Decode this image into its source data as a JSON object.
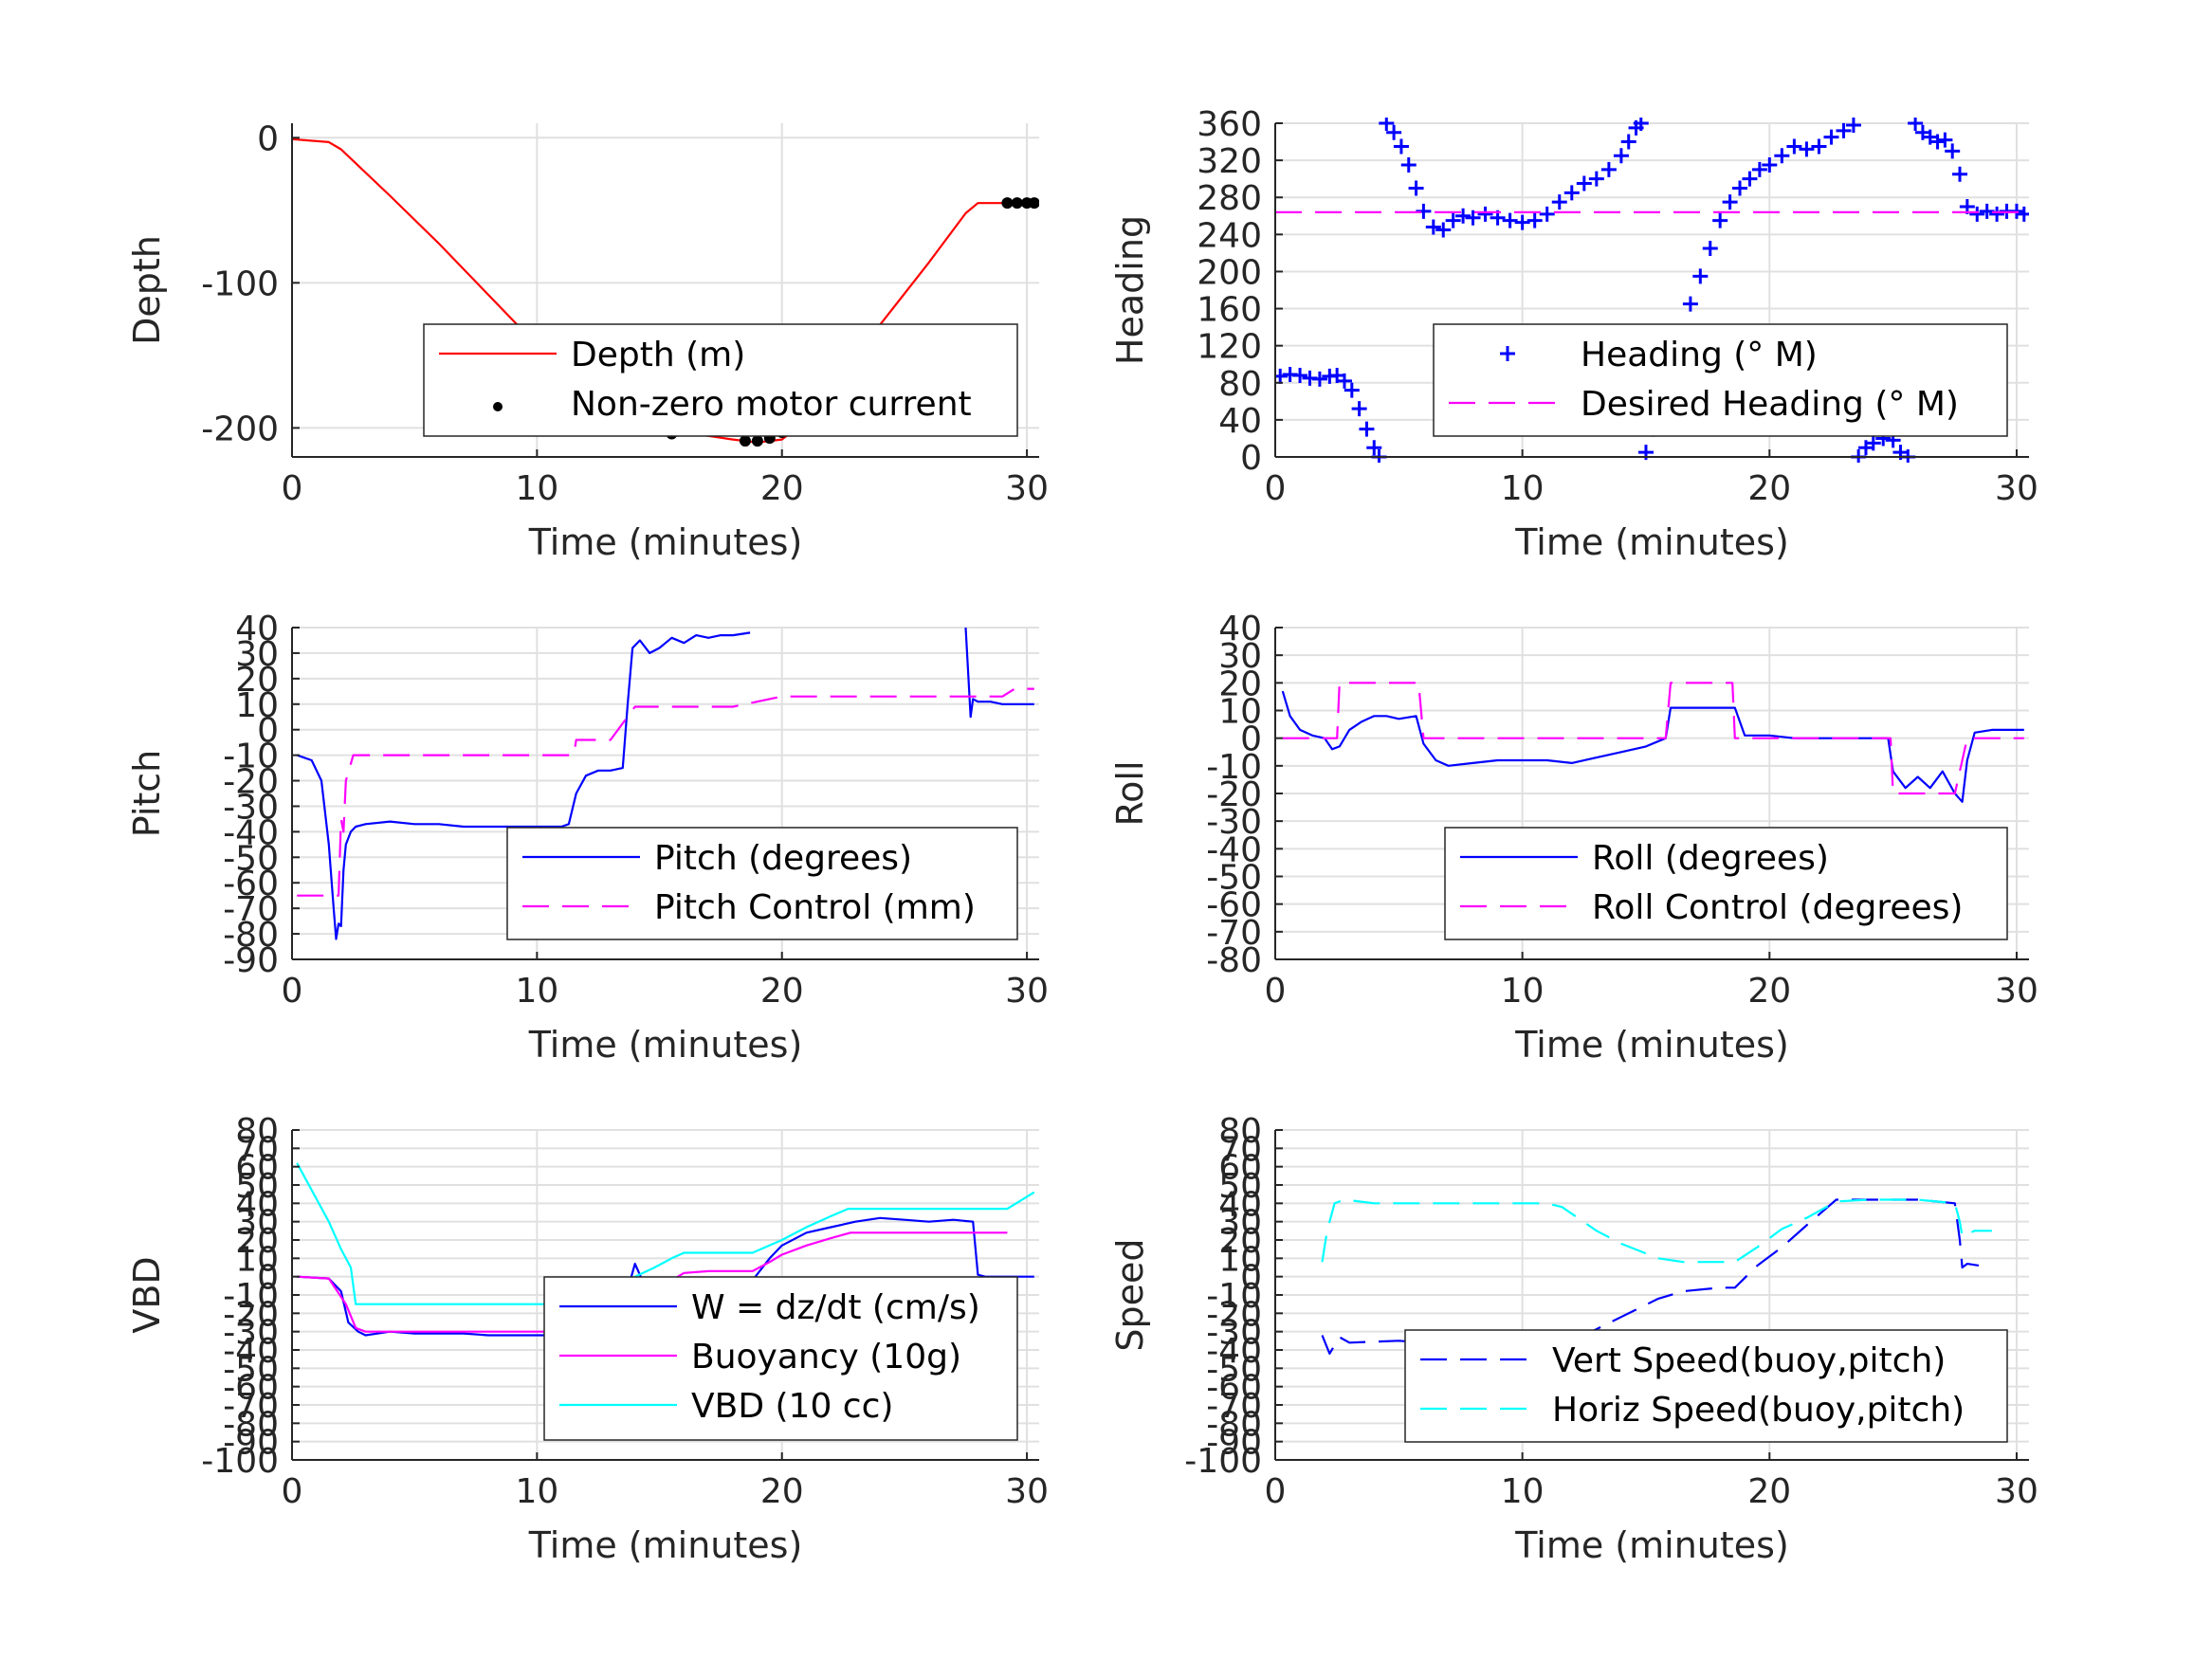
{
  "chart_data": [
    {
      "type": "line",
      "xlabel": "Time (minutes)",
      "ylabel": "Depth",
      "xlim": [
        0,
        30
      ],
      "ylim": [
        -220,
        10
      ],
      "xticks": [
        0,
        10,
        20,
        30
      ],
      "yticks": [
        0,
        -100,
        -200
      ],
      "grid": true,
      "legend_position": "bottom-right",
      "series": [
        {
          "name": "Depth (m)",
          "style": "solid",
          "color": "#ff0000",
          "x": [
            0,
            1.5,
            2,
            4,
            6,
            8,
            10,
            12,
            14,
            16,
            18,
            19,
            20,
            21,
            22,
            24,
            26,
            27.5,
            28,
            29,
            30
          ],
          "y": [
            -1,
            -3,
            -8,
            -40,
            -73,
            -108,
            -143,
            -178,
            -195,
            -203,
            -208,
            -210,
            -208,
            -195,
            -172,
            -129,
            -86,
            -52,
            -45,
            -45,
            -45
          ]
        },
        {
          "name": "Non-zero motor current",
          "style": "dots",
          "color": "#000000",
          "x": [
            11,
            11.5,
            12,
            12.5,
            13,
            13.5,
            14,
            14.5,
            15,
            15.5,
            18.5,
            19,
            19.5,
            20,
            20.5,
            21,
            21.5,
            22,
            22.5,
            22.8,
            29.2,
            29.6,
            30,
            30.3
          ],
          "y": [
            -186,
            -190,
            -193,
            -196,
            -198,
            -197,
            -198,
            -200,
            -202,
            -204,
            -209,
            -209,
            -207,
            -203,
            -197,
            -190,
            -182,
            -174,
            -165,
            -159,
            -45,
            -45,
            -45,
            -45
          ]
        }
      ]
    },
    {
      "type": "scatter",
      "xlabel": "Time (minutes)",
      "ylabel": "Heading",
      "xlim": [
        0,
        30
      ],
      "ylim": [
        0,
        360
      ],
      "xticks": [
        0,
        10,
        20,
        30
      ],
      "yticks": [
        0,
        40,
        80,
        120,
        160,
        200,
        240,
        280,
        320,
        360
      ],
      "grid": true,
      "legend_position": "bottom-right",
      "series": [
        {
          "name": "Heading (° M)",
          "style": "plus",
          "color": "#0000ff",
          "x": [
            0.2,
            0.6,
            1,
            1.4,
            1.8,
            2.2,
            2.5,
            2.8,
            3.1,
            3.4,
            3.7,
            4,
            4.2,
            4.5,
            4.8,
            5.1,
            5.4,
            5.7,
            6,
            6.4,
            6.8,
            7.2,
            7.6,
            8,
            8.5,
            9,
            9.5,
            10,
            10.5,
            11,
            11.5,
            12,
            12.5,
            13,
            13.5,
            14,
            14.3,
            14.6,
            14.8,
            15,
            15.3,
            15.6,
            16,
            16.4,
            16.8,
            17.2,
            17.6,
            18,
            18.4,
            18.8,
            19.2,
            19.6,
            20,
            20.5,
            21,
            21.5,
            22,
            22.5,
            23,
            23.4,
            23.6,
            23.9,
            24.2,
            24.6,
            25,
            25.3,
            25.6,
            25.9,
            26.2,
            26.5,
            26.8,
            27.1,
            27.4,
            27.7,
            28,
            28.4,
            28.8,
            29.2,
            29.6,
            30,
            30.3
          ],
          "y": [
            87,
            89,
            88,
            85,
            84,
            87,
            88,
            82,
            72,
            52,
            30,
            10,
            0,
            360,
            350,
            335,
            315,
            290,
            265,
            248,
            245,
            255,
            260,
            258,
            262,
            258,
            255,
            253,
            255,
            262,
            275,
            285,
            295,
            300,
            310,
            325,
            340,
            355,
            360,
            5,
            30,
            60,
            95,
            130,
            165,
            195,
            225,
            255,
            275,
            290,
            300,
            310,
            315,
            325,
            335,
            332,
            335,
            345,
            352,
            358,
            0,
            10,
            15,
            20,
            18,
            5,
            0,
            360,
            350,
            345,
            340,
            342,
            330,
            305,
            270,
            262,
            265,
            262,
            265,
            265,
            262
          ]
        },
        {
          "name": "Desired Heading (° M)",
          "style": "dashed",
          "color": "#ff00ff",
          "x": [
            0,
            30.5
          ],
          "y": [
            264,
            264
          ]
        }
      ]
    },
    {
      "type": "line",
      "xlabel": "Time (minutes)",
      "ylabel": "Pitch",
      "xlim": [
        0,
        30
      ],
      "ylim": [
        -90,
        40
      ],
      "xticks": [
        0,
        10,
        20,
        30
      ],
      "yticks": [
        40,
        30,
        20,
        10,
        0,
        -10,
        -20,
        -30,
        -40,
        -50,
        -60,
        -70,
        -80,
        -90
      ],
      "grid": true,
      "legend_position": "bottom-right",
      "series": [
        {
          "name": "Pitch (degrees)",
          "style": "solid",
          "color": "#0000ff",
          "x": [
            0.2,
            0.8,
            1.2,
            1.5,
            1.7,
            1.8,
            1.9,
            2,
            2.1,
            2.2,
            2.4,
            2.6,
            3,
            4,
            5,
            6,
            7,
            8,
            9,
            10,
            11,
            11.3,
            11.6,
            12,
            12.5,
            13,
            13.5,
            13.7,
            13.9,
            14.2,
            14.6,
            15,
            15.5,
            16,
            16.5,
            17,
            17.5,
            18,
            18.7
          ],
          "y": [
            -10,
            -12,
            -20,
            -45,
            -70,
            -82,
            -76,
            -77,
            -55,
            -45,
            -40,
            -38,
            -37,
            -36,
            -37,
            -37,
            -38,
            -38,
            -38,
            -38,
            -38,
            -37,
            -25,
            -18,
            -16,
            -16,
            -15,
            10,
            32,
            35,
            30,
            32,
            36,
            34,
            37,
            36,
            37,
            37,
            38
          ]
        },
        {
          "name": "Pitch (degrees)",
          "style": "solid",
          "color": "#0000ff",
          "unlabeled": true,
          "x": [
            27.5,
            27.7,
            27.8,
            28,
            28.5,
            29,
            30,
            30.3
          ],
          "y": [
            40,
            5,
            12,
            11,
            11,
            10,
            10,
            10
          ]
        },
        {
          "name": "Pitch Control (mm)",
          "style": "dashed",
          "color": "#ff00ff",
          "x": [
            0.2,
            1.9,
            2,
            2.1,
            2.2,
            2.5,
            5,
            8,
            11,
            11.5,
            11.6,
            12,
            13,
            14,
            15,
            18,
            20,
            25,
            28,
            29,
            29.5,
            30.3
          ],
          "y": [
            -65,
            -65,
            -35,
            -40,
            -20,
            -10,
            -10,
            -10,
            -10,
            -10,
            -4,
            -4,
            -4,
            9,
            9,
            9,
            13,
            13,
            13,
            13,
            16,
            16
          ]
        }
      ]
    },
    {
      "type": "line",
      "xlabel": "Time (minutes)",
      "ylabel": "Roll",
      "xlim": [
        0,
        30
      ],
      "ylim": [
        -80,
        40
      ],
      "xticks": [
        0,
        10,
        20,
        30
      ],
      "yticks": [
        40,
        30,
        20,
        10,
        0,
        -10,
        -20,
        -30,
        -40,
        -50,
        -60,
        -70,
        -80
      ],
      "grid": true,
      "legend_position": "bottom-right",
      "series": [
        {
          "name": "Roll (degrees)",
          "style": "solid",
          "color": "#0000ff",
          "x": [
            0.3,
            0.6,
            1,
            1.5,
            2,
            2.3,
            2.6,
            3,
            3.5,
            4,
            4.5,
            5,
            5.7,
            6,
            6.5,
            7,
            8,
            9,
            10,
            11,
            12,
            13,
            14,
            15,
            15.8,
            16,
            17,
            18,
            18.6,
            19,
            20,
            21,
            22,
            23,
            24,
            24.8,
            25,
            25.5,
            26,
            26.5,
            27,
            27.5,
            27.8,
            28,
            28.3,
            29,
            30,
            30.3
          ],
          "y": [
            17,
            8,
            3,
            1,
            0,
            -4,
            -3,
            3,
            6,
            8,
            8,
            7,
            8,
            -2,
            -8,
            -10,
            -9,
            -8,
            -8,
            -8,
            -9,
            -7,
            -5,
            -3,
            0,
            11,
            11,
            11,
            11,
            1,
            1,
            0,
            0,
            0,
            0,
            0,
            -12,
            -18,
            -14,
            -18,
            -12,
            -20,
            -23,
            -8,
            2,
            3,
            3,
            3
          ]
        },
        {
          "name": "Roll Control (degrees)",
          "style": "dashed",
          "color": "#ff00ff",
          "x": [
            0.3,
            2.5,
            2.6,
            3,
            5,
            5.8,
            6,
            8,
            10,
            12,
            14,
            15.8,
            16,
            18.5,
            18.6,
            20,
            22,
            24.9,
            25,
            26,
            27.5,
            28,
            30.3
          ],
          "y": [
            0,
            0,
            20,
            20,
            20,
            20,
            0,
            0,
            0,
            0,
            0,
            0,
            20,
            20,
            0,
            0,
            0,
            0,
            -20,
            -20,
            -20,
            0,
            0
          ]
        }
      ]
    },
    {
      "type": "line",
      "xlabel": "Time (minutes)",
      "ylabel": "VBD",
      "xlim": [
        0,
        30
      ],
      "ylim": [
        -100,
        80
      ],
      "xticks": [
        0,
        10,
        20,
        30
      ],
      "yticks": [
        80,
        70,
        60,
        50,
        40,
        30,
        20,
        10,
        0,
        -10,
        -20,
        -30,
        -40,
        -50,
        -60,
        -70,
        -80,
        -90,
        -100
      ],
      "grid": true,
      "legend_position": "bottom-right",
      "series": [
        {
          "name": "W = dz/dt (cm/s)",
          "style": "solid",
          "color": "#0000ff",
          "x": [
            0.2,
            1.5,
            2,
            2.3,
            2.7,
            3,
            4,
            5,
            6,
            7,
            8,
            9,
            10,
            11,
            11.5,
            12,
            13,
            13.6,
            14,
            14.4,
            14.8,
            15.5,
            16,
            17,
            18,
            18.8,
            19.5,
            20,
            21,
            22,
            23,
            24,
            25,
            26,
            27,
            27.8,
            28,
            28.3,
            29,
            30.3
          ],
          "y": [
            0,
            -1,
            -8,
            -25,
            -30,
            -32,
            -30,
            -31,
            -31,
            -31,
            -32,
            -32,
            -32,
            -32,
            -30,
            -25,
            -18,
            -12,
            7,
            -5,
            -8,
            -6,
            -5,
            -4,
            -3,
            -2,
            10,
            17,
            24,
            27,
            30,
            32,
            31,
            30,
            31,
            30,
            1,
            0,
            0,
            0
          ]
        },
        {
          "name": "Buoyancy (10g)",
          "style": "solid",
          "color": "#ff00ff",
          "x": [
            0.2,
            1.5,
            2.2,
            2.6,
            3,
            6,
            9,
            11,
            11.5,
            12,
            13,
            14,
            15,
            16,
            17,
            18,
            18.8,
            19.5,
            20,
            21,
            22,
            22.8,
            23,
            25,
            27,
            29.2
          ],
          "y": [
            0,
            -1,
            -15,
            -28,
            -30,
            -30,
            -30,
            -30,
            -30,
            -27,
            -20,
            -12,
            -6,
            2,
            3,
            3,
            3,
            8,
            12,
            17,
            21,
            24,
            24,
            24,
            24,
            24
          ]
        },
        {
          "name": "VBD (10 cc)",
          "style": "solid",
          "color": "#00ffff",
          "x": [
            0.2,
            1.5,
            2,
            2.4,
            2.6,
            3,
            6,
            9,
            11,
            11.5,
            12,
            13,
            14,
            14.8,
            15.5,
            16,
            18,
            18.8,
            20,
            21,
            22,
            22.7,
            24,
            26,
            28,
            29.2,
            30.3
          ],
          "y": [
            62,
            30,
            15,
            5,
            -15,
            -15,
            -15,
            -15,
            -15,
            -15,
            -12,
            -6,
            0,
            5,
            10,
            13,
            13,
            13,
            20,
            27,
            33,
            37,
            37,
            37,
            37,
            37,
            46
          ]
        }
      ]
    },
    {
      "type": "line",
      "xlabel": "Time (minutes)",
      "ylabel": "Speed",
      "xlim": [
        0,
        30
      ],
      "ylim": [
        -100,
        80
      ],
      "xticks": [
        0,
        10,
        20,
        30
      ],
      "yticks": [
        80,
        70,
        60,
        50,
        40,
        30,
        20,
        10,
        0,
        -10,
        -20,
        -30,
        -40,
        -50,
        -60,
        -70,
        -80,
        -90,
        -100
      ],
      "grid": true,
      "legend_position": "bottom-right",
      "series": [
        {
          "name": "Vert Speed(buoy,pitch)",
          "style": "dashed",
          "color": "#0000ff",
          "x": [
            1.9,
            2.2,
            2.6,
            3,
            5,
            8,
            11,
            11.6,
            12.5,
            14,
            15.5,
            16.5,
            18,
            18.6,
            19.5,
            20.5,
            21.5,
            22.7,
            24,
            26,
            27.5,
            27.7,
            27.8,
            28,
            28.5,
            29
          ],
          "y": [
            -32,
            -42,
            -33,
            -36,
            -35,
            -38,
            -38,
            -36,
            -32,
            -22,
            -12,
            -8,
            -6,
            -6,
            6,
            16,
            28,
            42,
            42,
            42,
            40,
            20,
            5,
            7,
            6,
            6
          ]
        },
        {
          "name": "Horiz Speed(buoy,pitch)",
          "style": "dashed",
          "color": "#00ffff",
          "x": [
            1.9,
            2.1,
            2.4,
            2.8,
            4,
            8,
            11,
            11.6,
            13,
            14,
            15.5,
            16.5,
            18,
            18.6,
            19.5,
            20.5,
            21.5,
            22.7,
            24,
            26,
            27.5,
            27.7,
            27.8,
            28.3,
            29
          ],
          "y": [
            8,
            25,
            40,
            42,
            40,
            40,
            40,
            38,
            25,
            18,
            10,
            8,
            8,
            8,
            16,
            26,
            32,
            41,
            42,
            42,
            40,
            30,
            22,
            25,
            25
          ]
        }
      ]
    }
  ]
}
